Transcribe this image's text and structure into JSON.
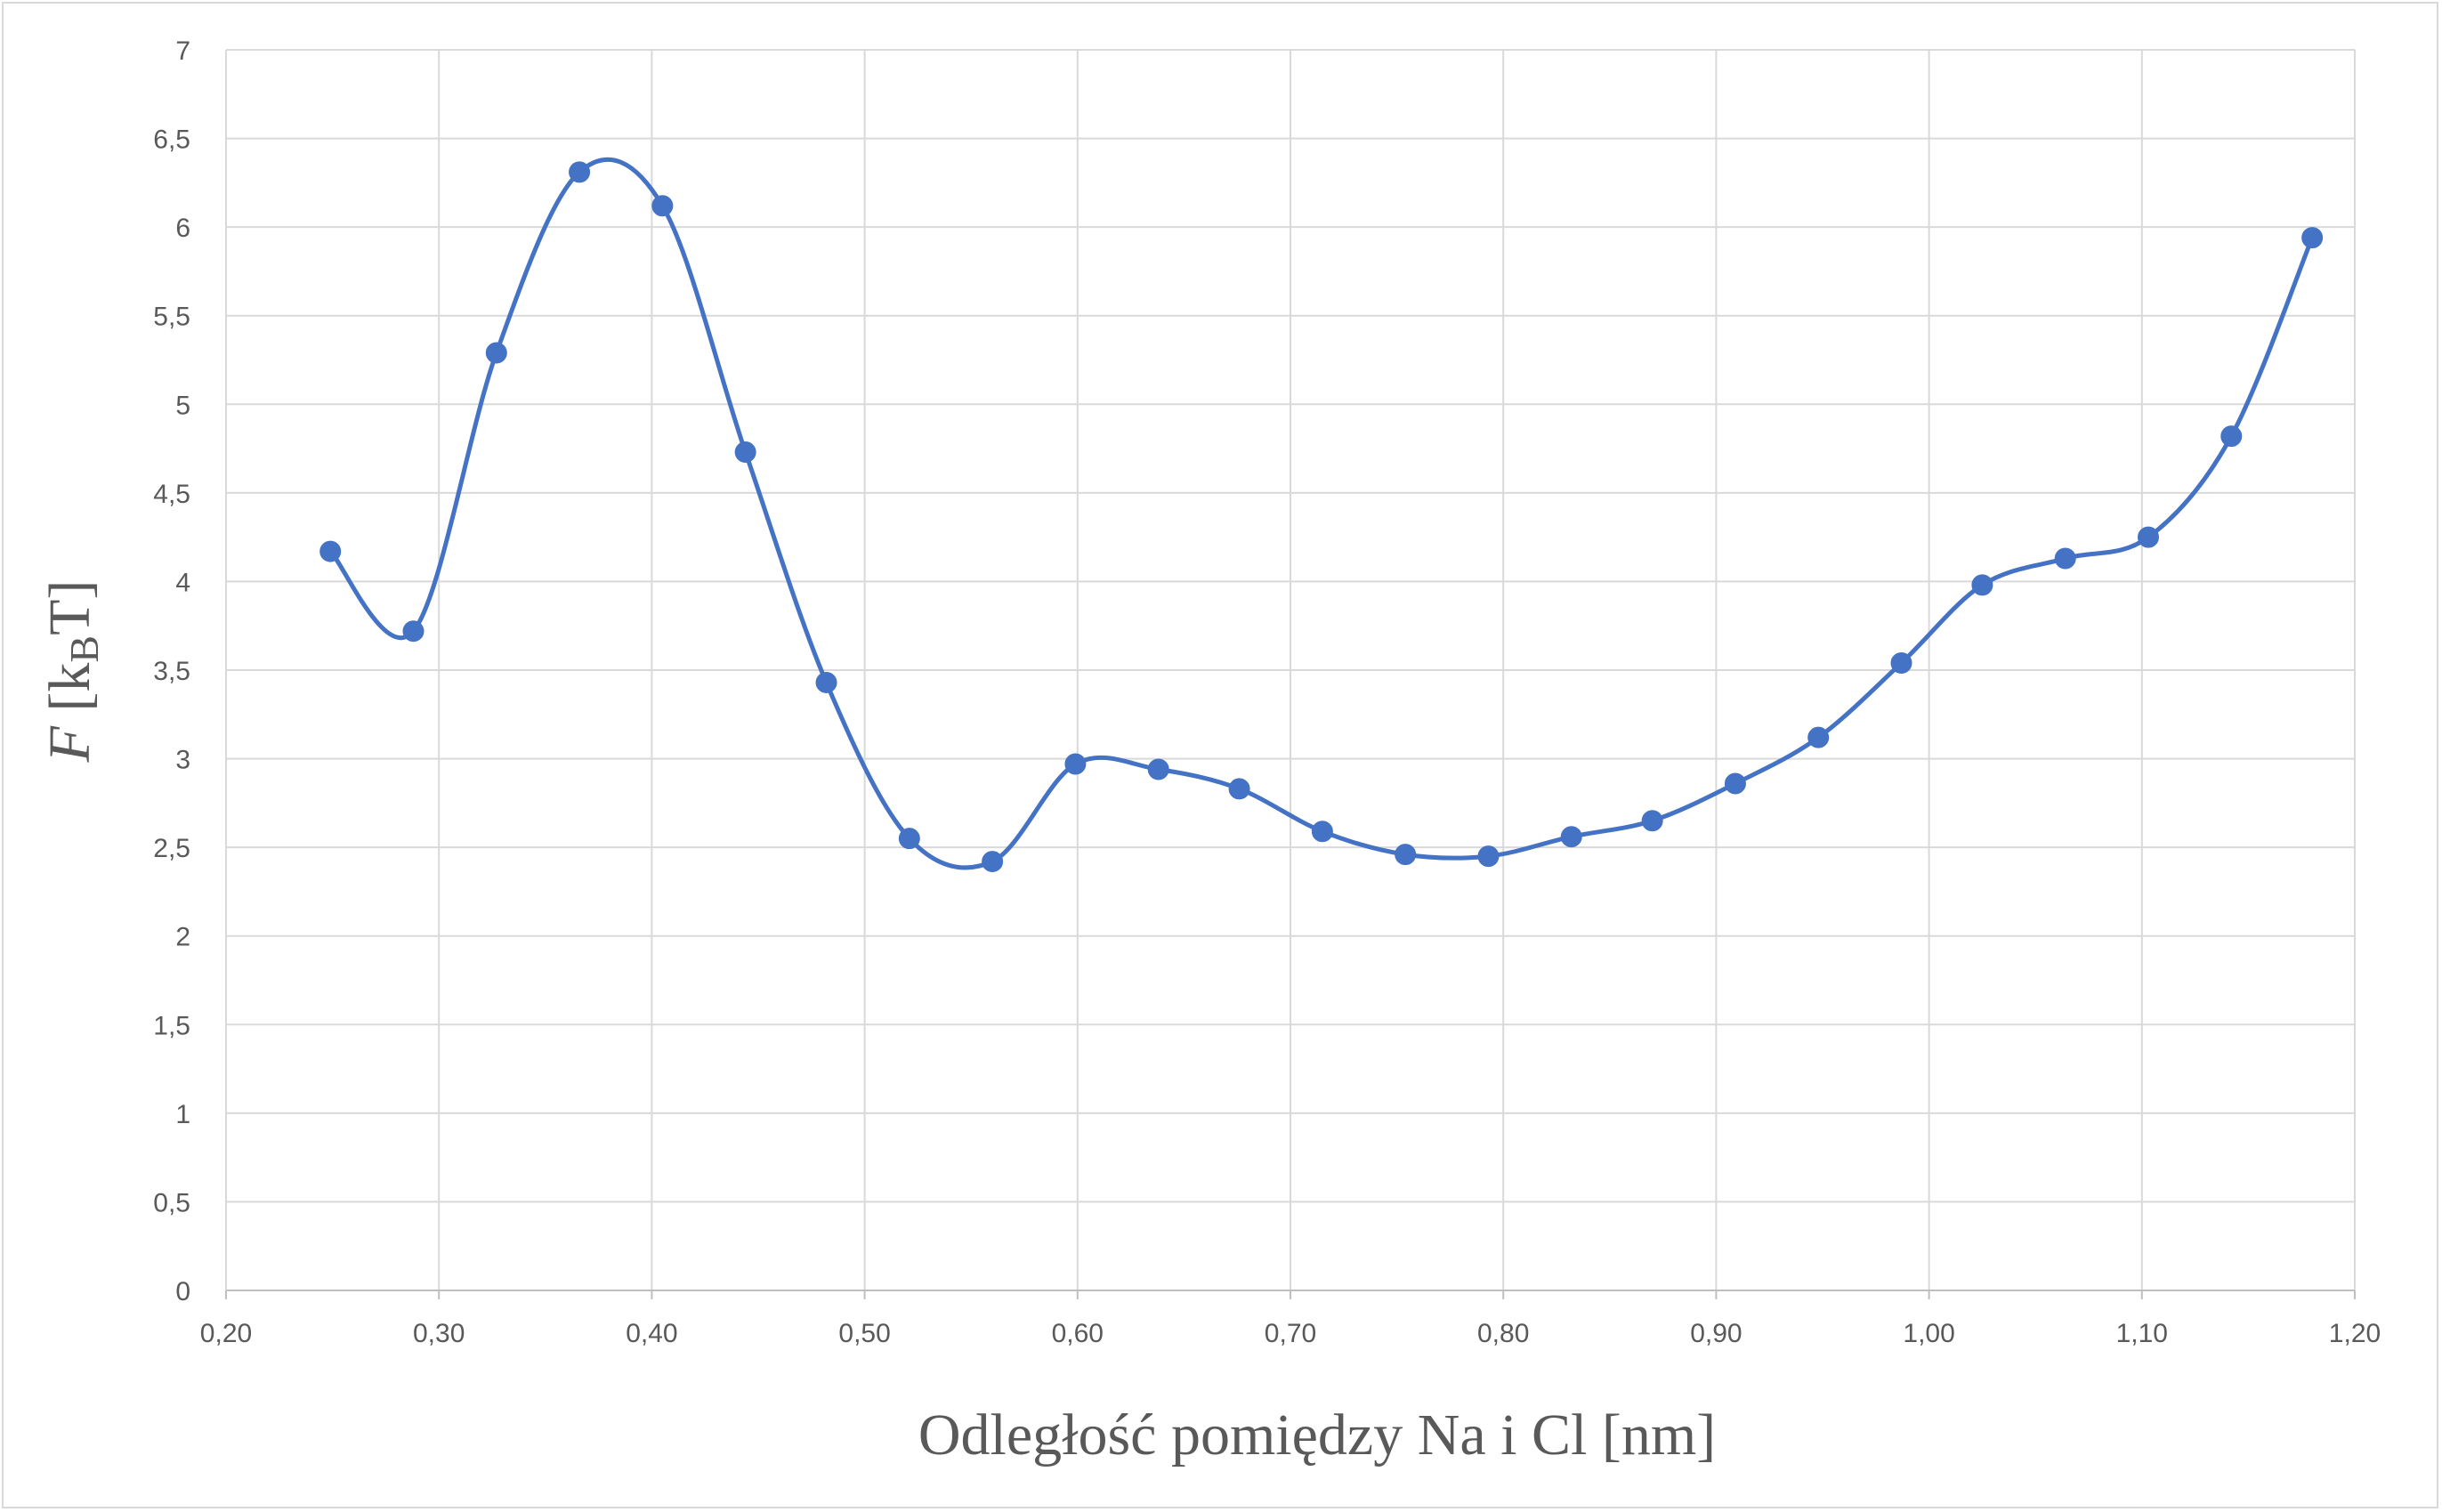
{
  "chart_data": {
    "type": "line",
    "title": "",
    "xlabel": "Odległość pomiędzy Na i Cl [nm]",
    "ylabel": {
      "italic_symbol": "F",
      "open_bracket": " [k",
      "subscript": "B",
      "close": "T]"
    },
    "xlim": [
      0.2,
      1.2
    ],
    "ylim": [
      0,
      7
    ],
    "x_ticks": [
      0.2,
      0.3,
      0.4,
      0.5,
      0.6,
      0.7,
      0.8,
      0.9,
      1.0,
      1.1,
      1.2
    ],
    "x_tick_labels": [
      "0,20",
      "0,30",
      "0,40",
      "0,50",
      "0,60",
      "0,70",
      "0,80",
      "0,90",
      "1,00",
      "1,10",
      "1,20"
    ],
    "y_ticks": [
      0,
      0.5,
      1,
      1.5,
      2,
      2.5,
      3,
      3.5,
      4,
      4.5,
      5,
      5.5,
      6,
      6.5,
      7
    ],
    "y_tick_labels": [
      "0",
      "0,5",
      "1",
      "1,5",
      "2",
      "2,5",
      "3",
      "3,5",
      "4",
      "4,5",
      "5",
      "5,5",
      "6",
      "6,5",
      "7"
    ],
    "grid": true,
    "smooth": true,
    "series": [
      {
        "color": "#4472c4",
        "x": [
          0.249,
          0.288,
          0.327,
          0.366,
          0.405,
          0.444,
          0.482,
          0.521,
          0.56,
          0.599,
          0.638,
          0.676,
          0.715,
          0.754,
          0.793,
          0.832,
          0.87,
          0.909,
          0.948,
          0.987,
          1.025,
          1.064,
          1.103,
          1.142,
          1.18
        ],
        "y": [
          4.17,
          3.72,
          5.29,
          6.31,
          6.12,
          4.73,
          3.43,
          2.55,
          2.42,
          2.97,
          2.94,
          2.83,
          2.59,
          2.46,
          2.45,
          2.56,
          2.65,
          2.86,
          3.12,
          3.54,
          3.98,
          4.13,
          4.25,
          4.82,
          5.94
        ]
      }
    ]
  }
}
